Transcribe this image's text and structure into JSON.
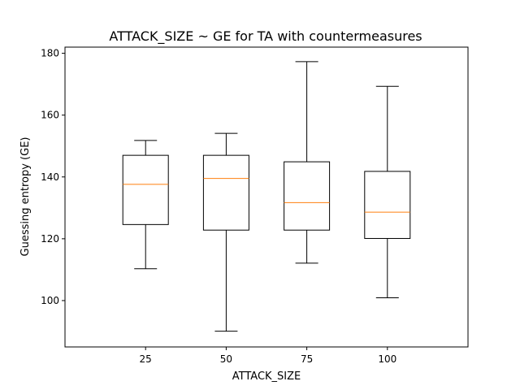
{
  "chart_data": {
    "type": "boxplot",
    "title": "ATTACK_SIZE ~ GE for TA with countermeasures",
    "xlabel": "ATTACK_SIZE",
    "ylabel": "Guessing entropy (GE)",
    "categories": [
      "25",
      "50",
      "75",
      "100"
    ],
    "ylim": [
      85,
      182
    ],
    "yticks": [
      100,
      120,
      140,
      160,
      180
    ],
    "grid": false,
    "boxes": [
      {
        "category": "25",
        "whisker_low": 110.3,
        "q1": 124.6,
        "median": 137.6,
        "q3": 147.0,
        "whisker_high": 151.8
      },
      {
        "category": "50",
        "whisker_low": 90.1,
        "q1": 122.8,
        "median": 139.5,
        "q3": 147.0,
        "whisker_high": 154.1
      },
      {
        "category": "75",
        "whisker_low": 112.1,
        "q1": 122.8,
        "median": 131.7,
        "q3": 144.9,
        "whisker_high": 177.3
      },
      {
        "category": "100",
        "whisker_low": 100.9,
        "q1": 120.1,
        "median": 128.6,
        "q3": 141.8,
        "whisker_high": 169.3
      }
    ],
    "colors": {
      "box": "#000000",
      "median": "#ff7f0e"
    }
  }
}
